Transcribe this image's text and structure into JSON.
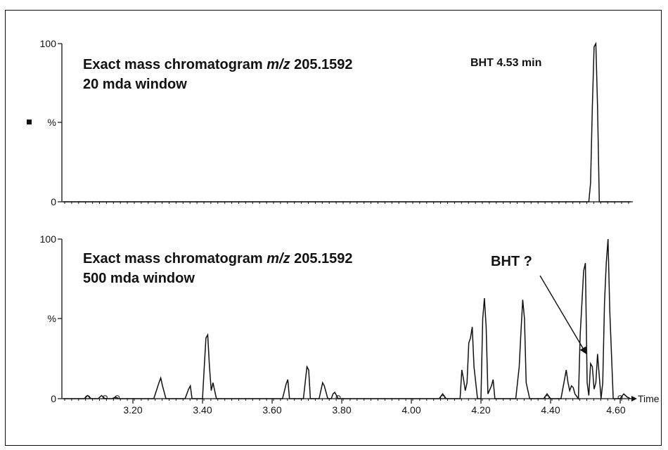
{
  "chart_data": [
    {
      "type": "line",
      "ylabel": "%",
      "y_ticks": [
        "100",
        "%",
        "0"
      ],
      "xlim": [
        3.0,
        4.63
      ],
      "ylim": [
        0,
        100
      ],
      "annotation_lines": [
        [
          "Exact mass chromatogram ",
          "m/z",
          " 205.1592"
        ],
        [
          "20 mda window"
        ]
      ],
      "peak_label": "BHT 4.53 min",
      "series": [
        {
          "x": [
            3.0,
            4.5,
            4.51,
            4.515,
            4.52,
            4.525,
            4.53,
            4.535,
            4.54,
            4.63
          ],
          "values": [
            0,
            0,
            0,
            12,
            60,
            98,
            100,
            60,
            0,
            0
          ]
        }
      ]
    },
    {
      "type": "line",
      "xlabel": "Time",
      "ylabel": "%",
      "y_ticks": [
        "100",
        "%",
        "0"
      ],
      "x_ticks": [
        "3.20",
        "3.40",
        "3.60",
        "3.80",
        "4.00",
        "4.20",
        "4.40",
        "4.60"
      ],
      "xlim": [
        3.0,
        4.63
      ],
      "ylim": [
        0,
        100
      ],
      "annotation_lines": [
        [
          "Exact mass chromatogram ",
          "m/z",
          " 205.1592"
        ],
        [
          "500 mda window"
        ]
      ],
      "arrow_label": "BHT ?",
      "series": [
        {
          "x": [
            3.0,
            3.06,
            3.07,
            3.08,
            3.1,
            3.11,
            3.12,
            3.14,
            3.15,
            3.16,
            3.26,
            3.275,
            3.28,
            3.285,
            3.295,
            3.35,
            3.36,
            3.365,
            3.37,
            3.4,
            3.405,
            3.41,
            3.415,
            3.42,
            3.425,
            3.43,
            3.44,
            3.63,
            3.64,
            3.645,
            3.65,
            3.66,
            3.69,
            3.7,
            3.705,
            3.71,
            3.72,
            3.735,
            3.745,
            3.75,
            3.76,
            3.77,
            3.775,
            3.78,
            3.79,
            4.08,
            4.09,
            4.1,
            4.14,
            4.145,
            4.15,
            4.155,
            4.16,
            4.165,
            4.17,
            4.175,
            4.18,
            4.19,
            4.2,
            4.205,
            4.21,
            4.215,
            4.22,
            4.23,
            4.235,
            4.24,
            4.3,
            4.31,
            4.315,
            4.32,
            4.325,
            4.33,
            4.34,
            4.38,
            4.39,
            4.4,
            4.43,
            4.44,
            4.445,
            4.45,
            4.455,
            4.46,
            4.465,
            4.47,
            4.48,
            4.485,
            4.49,
            4.495,
            4.5,
            4.505,
            4.51,
            4.515,
            4.52,
            4.525,
            4.53,
            4.535,
            4.545,
            4.55,
            4.555,
            4.56,
            4.565,
            4.57,
            4.58,
            4.6,
            4.61,
            4.62,
            4.63
          ],
          "values": [
            0,
            0,
            2,
            0,
            0,
            2,
            0,
            0,
            1,
            0,
            0,
            10,
            13,
            8,
            0,
            0,
            6,
            8,
            0,
            0,
            20,
            38,
            40,
            20,
            5,
            10,
            0,
            0,
            9,
            12,
            0,
            0,
            0,
            20,
            18,
            0,
            0,
            0,
            10,
            8,
            0,
            0,
            3,
            4,
            0,
            0,
            3,
            0,
            0,
            18,
            12,
            5,
            10,
            35,
            38,
            45,
            20,
            0,
            0,
            50,
            63,
            45,
            3,
            8,
            12,
            0,
            0,
            20,
            42,
            62,
            50,
            10,
            0,
            0,
            3,
            0,
            0,
            12,
            18,
            10,
            5,
            8,
            7,
            3,
            0,
            40,
            60,
            80,
            85,
            10,
            2,
            22,
            20,
            6,
            10,
            28,
            0,
            10,
            60,
            85,
            100,
            55,
            0,
            0,
            3,
            1,
            0
          ]
        }
      ]
    }
  ]
}
